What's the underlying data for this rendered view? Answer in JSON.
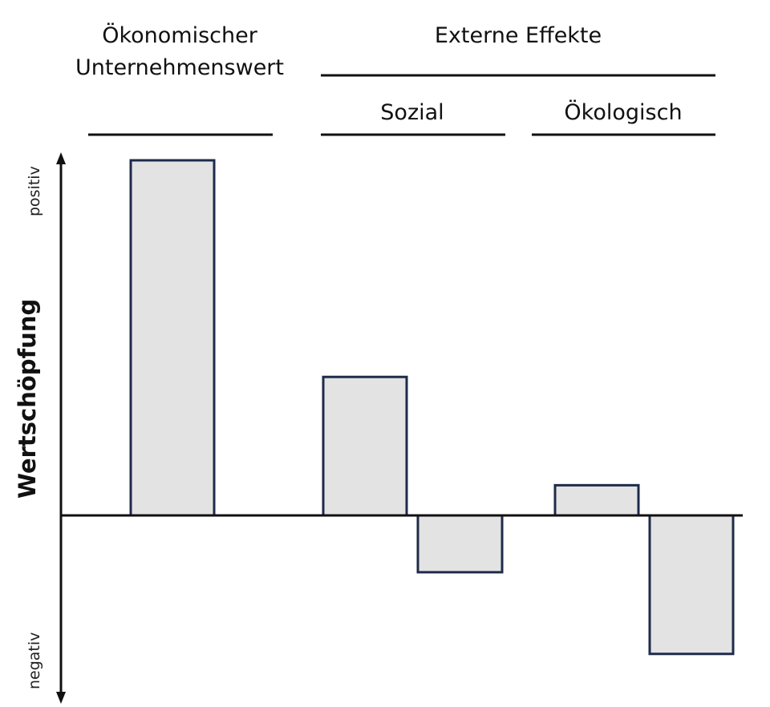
{
  "chart_data": {
    "type": "bar",
    "group_headers": {
      "economic_line1": "Ökonomischer",
      "economic_line2": "Unternehmenswert",
      "external": "Externe Effekte",
      "social": "Sozial",
      "ecological": "Ökologisch"
    },
    "ylabel": "Wertschöpfung",
    "y_positive_label": "positiv",
    "y_negative_label": "negativ",
    "ylim": [
      -100,
      100
    ],
    "grid": false,
    "bars": [
      {
        "group": "economic",
        "value": 100
      },
      {
        "group": "social",
        "value": 39
      },
      {
        "group": "social",
        "value": -16
      },
      {
        "group": "ecological",
        "value": 8.5
      },
      {
        "group": "ecological",
        "value": -39
      }
    ],
    "colors": {
      "bar_fill": "#e3e3e3",
      "bar_stroke": "#1f2b4a",
      "axis": "#111111"
    }
  }
}
